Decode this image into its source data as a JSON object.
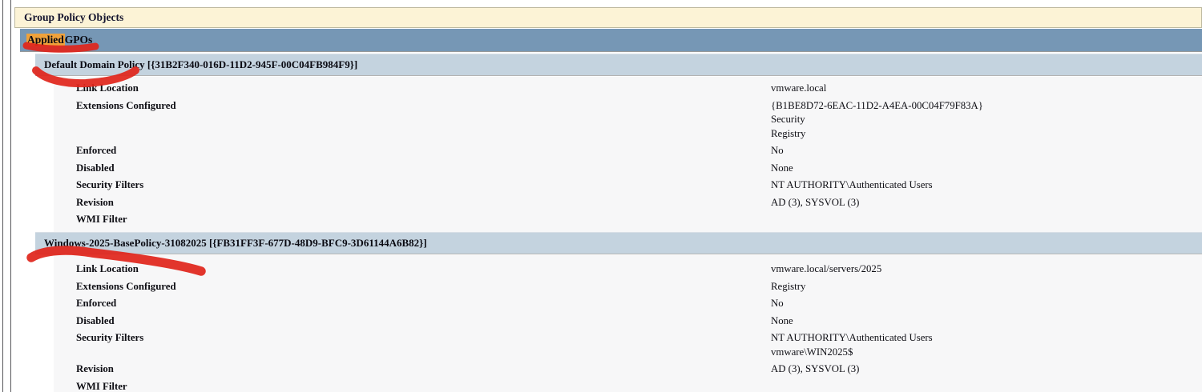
{
  "report": {
    "section_title": "Group Policy Objects"
  },
  "applied_gpos": {
    "highlighted_word": "Applied",
    "rest_of_label": " GPOs"
  },
  "gpos": [
    {
      "title": "Default Domain Policy [{31B2F340-016D-11D2-945F-00C04FB984F9}]",
      "rows": [
        {
          "label": "Link Location",
          "values": [
            "vmware.local"
          ]
        },
        {
          "label": "Extensions Configured",
          "values": [
            "{B1BE8D72-6EAC-11D2-A4EA-00C04F79F83A}",
            "Security",
            "Registry"
          ]
        },
        {
          "label": "Enforced",
          "values": [
            "No"
          ]
        },
        {
          "label": "Disabled",
          "values": [
            "None"
          ]
        },
        {
          "label": "Security Filters",
          "values": [
            "NT AUTHORITY\\Authenticated Users"
          ]
        },
        {
          "label": "Revision",
          "values": [
            "AD (3), SYSVOL (3)"
          ]
        },
        {
          "label": "WMI Filter",
          "values": []
        }
      ]
    },
    {
      "title": "Windows-2025-BasePolicy-31082025 [{FB31FF3F-677D-48D9-BFC9-3D61144A6B82}]",
      "rows": [
        {
          "label": "Link Location",
          "values": [
            "vmware.local/servers/2025"
          ]
        },
        {
          "label": "Extensions Configured",
          "values": [
            "Registry"
          ]
        },
        {
          "label": "Enforced",
          "values": [
            "No"
          ]
        },
        {
          "label": "Disabled",
          "values": [
            "None"
          ]
        },
        {
          "label": "Security Filters",
          "values": [
            "NT AUTHORITY\\Authenticated Users",
            "vmware\\WIN2025$"
          ]
        },
        {
          "label": "Revision",
          "values": [
            "AD (3), SYSVOL (3)"
          ]
        },
        {
          "label": "WMI Filter",
          "values": []
        }
      ]
    }
  ],
  "annotations": {
    "description": "hand-drawn red marker underline strokes",
    "color": "#E0261C",
    "strokes": [
      "applied-gpos-underline",
      "default-domain-policy-underline",
      "base-policy-underline"
    ]
  },
  "colors": {
    "section_header_bg": "#FCF3D6",
    "applied_band_bg": "#7697B5",
    "gpo_band_bg": "#C4D3DF",
    "content_bg": "#F7F7F8",
    "search_highlight": "#EFA23B",
    "border_line": "#57575B"
  }
}
